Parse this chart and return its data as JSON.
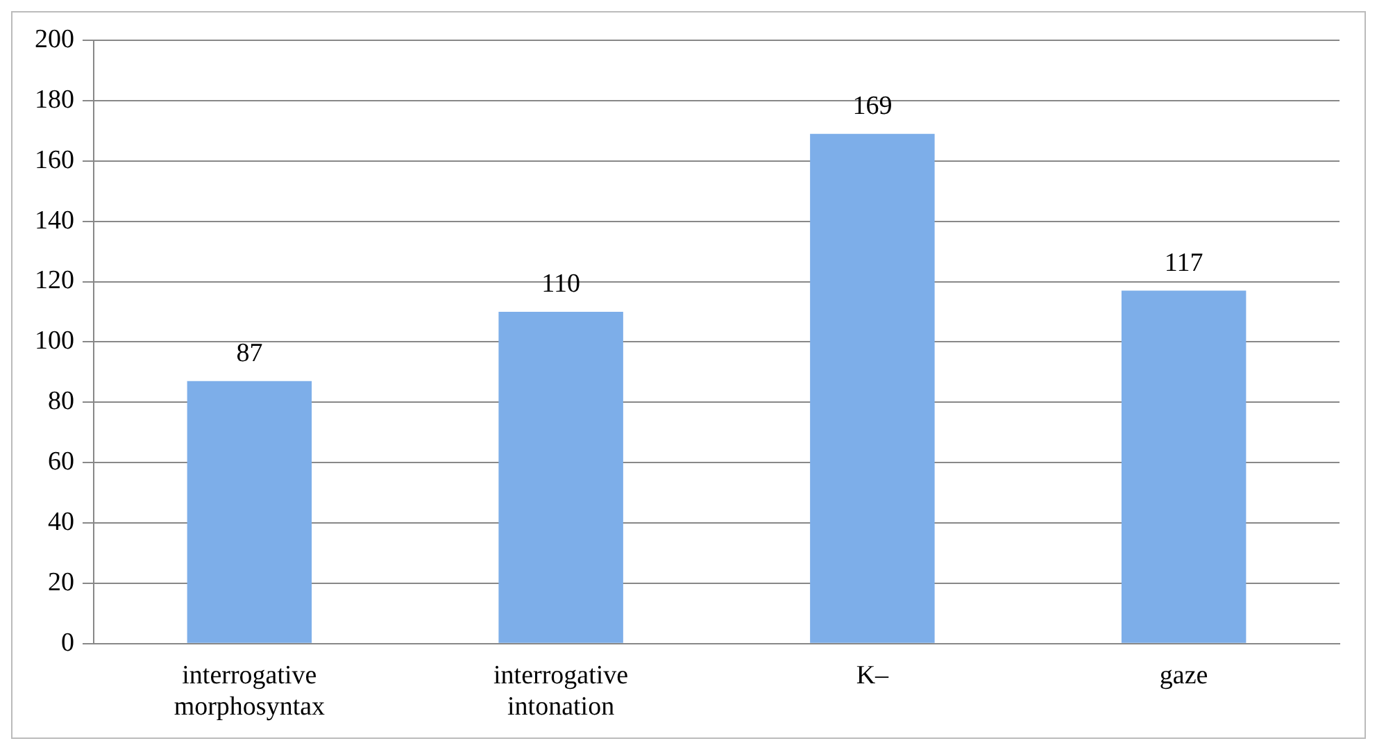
{
  "chart_data": {
    "type": "bar",
    "categories": [
      "interrogative morphosyntax",
      "interrogative intonation",
      "K–",
      "gaze"
    ],
    "values": [
      87,
      110,
      169,
      117
    ],
    "color": "#7daee9",
    "ylim": [
      0,
      200
    ],
    "yticks": [
      0,
      20,
      40,
      60,
      80,
      100,
      120,
      140,
      160,
      180,
      200
    ],
    "grid": "y",
    "data_labels": true,
    "legend": false
  }
}
